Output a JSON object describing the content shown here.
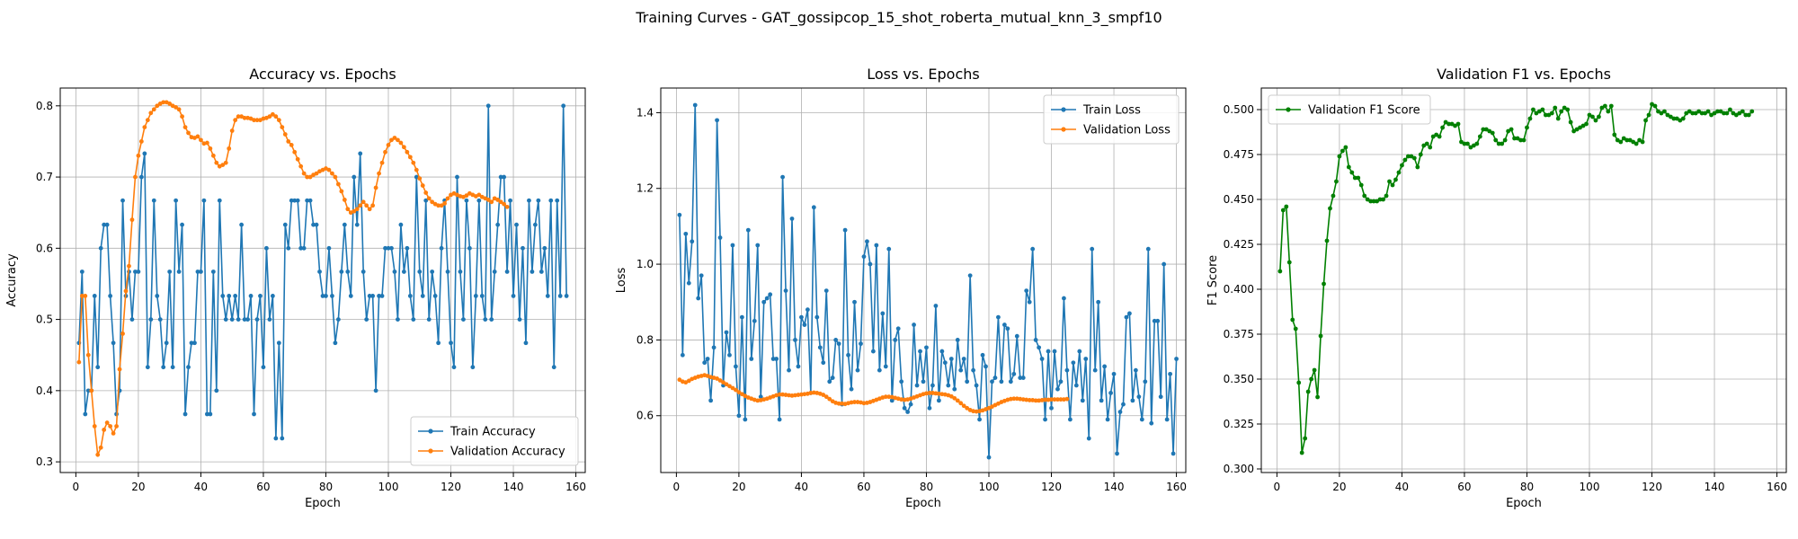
{
  "suptitle": "Training Curves - GAT_gossipcop_15_shot_roberta_mutual_knn_3_smpf10",
  "colors": {
    "train": "#1f77b4",
    "val": "#ff7f0e",
    "f1": "#008000",
    "grid": "#b0b0b0"
  },
  "chart_data": [
    {
      "type": "line",
      "title": "Accuracy vs. Epochs",
      "xlabel": "Epoch",
      "ylabel": "Accuracy",
      "xlim": [
        -5,
        163
      ],
      "ylim": [
        0.285,
        0.825
      ],
      "xticks": [
        0,
        20,
        40,
        60,
        80,
        100,
        120,
        140,
        160
      ],
      "yticks": [
        0.3,
        0.4,
        0.5,
        0.6,
        0.7,
        0.8
      ],
      "tick_decimals": 1,
      "legend_position": "lower-right",
      "series": [
        {
          "name": "Train Accuracy",
          "color_key": "train",
          "values": [
            0.467,
            0.567,
            0.367,
            0.4,
            0.4,
            0.533,
            0.433,
            0.6,
            0.633,
            0.633,
            0.533,
            0.467,
            0.367,
            0.4,
            0.667,
            0.533,
            0.567,
            0.5,
            0.567,
            0.567,
            0.7,
            0.733,
            0.433,
            0.5,
            0.667,
            0.533,
            0.5,
            0.433,
            0.467,
            0.567,
            0.433,
            0.667,
            0.567,
            0.633,
            0.367,
            0.433,
            0.467,
            0.467,
            0.567,
            0.567,
            0.667,
            0.367,
            0.367,
            0.567,
            0.4,
            0.667,
            0.533,
            0.5,
            0.533,
            0.5,
            0.533,
            0.5,
            0.633,
            0.5,
            0.5,
            0.533,
            0.367,
            0.5,
            0.533,
            0.433,
            0.6,
            0.5,
            0.533,
            0.333,
            0.467,
            0.333,
            0.633,
            0.6,
            0.667,
            0.667,
            0.667,
            0.6,
            0.6,
            0.667,
            0.667,
            0.633,
            0.633,
            0.567,
            0.533,
            0.533,
            0.6,
            0.533,
            0.467,
            0.5,
            0.567,
            0.633,
            0.567,
            0.533,
            0.7,
            0.633,
            0.733,
            0.567,
            0.5,
            0.533,
            0.533,
            0.4,
            0.533,
            0.533,
            0.6,
            0.6,
            0.6,
            0.567,
            0.5,
            0.633,
            0.567,
            0.6,
            0.533,
            0.5,
            0.7,
            0.567,
            0.533,
            0.667,
            0.5,
            0.567,
            0.533,
            0.467,
            0.6,
            0.667,
            0.567,
            0.467,
            0.433,
            0.7,
            0.567,
            0.5,
            0.667,
            0.6,
            0.433,
            0.533,
            0.667,
            0.533,
            0.5,
            0.8,
            0.5,
            0.567,
            0.633,
            0.7,
            0.7,
            0.567,
            0.667,
            0.533,
            0.633,
            0.5,
            0.6,
            0.467,
            0.667,
            0.567,
            0.633,
            0.667,
            0.567,
            0.6,
            0.533,
            0.667,
            0.433,
            0.667,
            0.533,
            0.8,
            0.533
          ]
        },
        {
          "name": "Validation Accuracy",
          "color_key": "val",
          "values": [
            0.44,
            0.533,
            0.533,
            0.45,
            0.4,
            0.35,
            0.31,
            0.32,
            0.345,
            0.355,
            0.35,
            0.34,
            0.35,
            0.43,
            0.48,
            0.54,
            0.575,
            0.64,
            0.7,
            0.73,
            0.75,
            0.77,
            0.78,
            0.79,
            0.795,
            0.8,
            0.803,
            0.805,
            0.805,
            0.803,
            0.8,
            0.798,
            0.795,
            0.785,
            0.77,
            0.762,
            0.756,
            0.755,
            0.757,
            0.752,
            0.747,
            0.748,
            0.74,
            0.73,
            0.72,
            0.715,
            0.717,
            0.72,
            0.74,
            0.765,
            0.78,
            0.785,
            0.785,
            0.783,
            0.783,
            0.782,
            0.78,
            0.78,
            0.78,
            0.782,
            0.783,
            0.785,
            0.788,
            0.785,
            0.78,
            0.77,
            0.76,
            0.75,
            0.745,
            0.735,
            0.725,
            0.715,
            0.705,
            0.7,
            0.7,
            0.703,
            0.705,
            0.708,
            0.71,
            0.712,
            0.71,
            0.705,
            0.7,
            0.69,
            0.68,
            0.668,
            0.655,
            0.65,
            0.652,
            0.655,
            0.66,
            0.665,
            0.66,
            0.655,
            0.66,
            0.685,
            0.705,
            0.72,
            0.735,
            0.745,
            0.752,
            0.755,
            0.752,
            0.748,
            0.742,
            0.735,
            0.728,
            0.72,
            0.71,
            0.698,
            0.688,
            0.678,
            0.67,
            0.665,
            0.662,
            0.66,
            0.66,
            0.663,
            0.67,
            0.675,
            0.677,
            0.675,
            0.673,
            0.672,
            0.674,
            0.677,
            0.675,
            0.673,
            0.675,
            0.672,
            0.67,
            0.668,
            0.665,
            0.67,
            0.668,
            0.665,
            0.662,
            0.658
          ]
        }
      ]
    },
    {
      "type": "line",
      "title": "Loss vs. Epochs",
      "xlabel": "Epoch",
      "ylabel": "Loss",
      "xlim": [
        -5,
        163
      ],
      "ylim": [
        0.45,
        1.465
      ],
      "xticks": [
        0,
        20,
        40,
        60,
        80,
        100,
        120,
        140,
        160
      ],
      "yticks": [
        0.6,
        0.8,
        1.0,
        1.2,
        1.4
      ],
      "tick_decimals": 1,
      "legend_position": "upper-right",
      "series": [
        {
          "name": "Train Loss",
          "color_key": "train",
          "values": [
            1.13,
            0.76,
            1.08,
            0.95,
            1.06,
            1.42,
            0.91,
            0.97,
            0.74,
            0.75,
            0.64,
            0.78,
            1.38,
            1.07,
            0.68,
            0.82,
            0.76,
            1.05,
            0.73,
            0.6,
            0.86,
            0.59,
            1.09,
            0.75,
            0.85,
            1.05,
            0.65,
            0.9,
            0.91,
            0.92,
            0.75,
            0.75,
            0.59,
            1.23,
            0.93,
            0.72,
            1.12,
            0.8,
            0.73,
            0.86,
            0.84,
            0.88,
            0.66,
            1.15,
            0.86,
            0.78,
            0.74,
            0.93,
            0.69,
            0.7,
            0.8,
            0.79,
            0.63,
            1.09,
            0.76,
            0.67,
            0.9,
            0.72,
            0.79,
            1.02,
            1.06,
            1.0,
            0.77,
            1.05,
            0.72,
            0.87,
            0.73,
            1.04,
            0.64,
            0.8,
            0.83,
            0.69,
            0.62,
            0.61,
            0.63,
            0.84,
            0.68,
            0.77,
            0.69,
            0.78,
            0.62,
            0.68,
            0.89,
            0.64,
            0.77,
            0.74,
            0.68,
            0.75,
            0.67,
            0.8,
            0.72,
            0.75,
            0.69,
            0.97,
            0.72,
            0.68,
            0.59,
            0.76,
            0.73,
            0.49,
            0.69,
            0.7,
            0.86,
            0.69,
            0.84,
            0.83,
            0.69,
            0.71,
            0.81,
            0.7,
            0.7,
            0.93,
            0.9,
            1.04,
            0.8,
            0.78,
            0.75,
            0.59,
            0.77,
            0.62,
            0.77,
            0.67,
            0.69,
            0.91,
            0.72,
            0.59,
            0.74,
            0.68,
            0.77,
            0.64,
            0.75,
            0.54,
            1.04,
            0.72,
            0.9,
            0.64,
            0.73,
            0.59,
            0.66,
            0.71,
            0.5,
            0.61,
            0.63,
            0.86,
            0.87,
            0.64,
            0.72,
            0.65,
            0.59,
            0.69,
            1.04,
            0.58,
            0.85,
            0.85,
            0.65,
            1.0,
            0.59,
            0.71,
            0.5,
            0.75
          ]
        },
        {
          "name": "Validation Loss",
          "color_key": "val",
          "values": [
            0.695,
            0.69,
            0.688,
            0.692,
            0.697,
            0.7,
            0.703,
            0.705,
            0.707,
            0.705,
            0.702,
            0.7,
            0.698,
            0.693,
            0.688,
            0.683,
            0.678,
            0.673,
            0.668,
            0.662,
            0.657,
            0.652,
            0.648,
            0.645,
            0.642,
            0.64,
            0.641,
            0.643,
            0.645,
            0.648,
            0.651,
            0.654,
            0.656,
            0.656,
            0.655,
            0.654,
            0.653,
            0.654,
            0.655,
            0.656,
            0.657,
            0.658,
            0.66,
            0.661,
            0.66,
            0.658,
            0.655,
            0.65,
            0.644,
            0.638,
            0.634,
            0.632,
            0.632,
            0.631,
            0.633,
            0.635,
            0.636,
            0.636,
            0.635,
            0.633,
            0.634,
            0.636,
            0.639,
            0.642,
            0.645,
            0.648,
            0.65,
            0.65,
            0.649,
            0.647,
            0.645,
            0.643,
            0.642,
            0.643,
            0.645,
            0.648,
            0.651,
            0.654,
            0.657,
            0.659,
            0.66,
            0.66,
            0.659,
            0.658,
            0.657,
            0.656,
            0.654,
            0.651,
            0.646,
            0.64,
            0.633,
            0.626,
            0.62,
            0.615,
            0.612,
            0.611,
            0.612,
            0.614,
            0.617,
            0.62,
            0.624,
            0.628,
            0.632,
            0.636,
            0.639,
            0.642,
            0.644,
            0.645,
            0.645,
            0.644,
            0.643,
            0.642,
            0.641,
            0.641,
            0.64,
            0.64,
            0.641,
            0.642,
            0.642,
            0.643,
            0.643,
            0.643,
            0.643,
            0.643,
            0.644
          ]
        }
      ]
    },
    {
      "type": "line",
      "title": "Validation F1 vs. Epochs",
      "xlabel": "Epoch",
      "ylabel": "F1 Score",
      "xlim": [
        -5,
        163
      ],
      "ylim": [
        0.298,
        0.512
      ],
      "xticks": [
        0,
        20,
        40,
        60,
        80,
        100,
        120,
        140,
        160
      ],
      "yticks": [
        0.3,
        0.325,
        0.35,
        0.375,
        0.4,
        0.425,
        0.45,
        0.475,
        0.5
      ],
      "tick_decimals": 3,
      "legend_position": "upper-left",
      "series": [
        {
          "name": "Validation F1 Score",
          "color_key": "f1",
          "values": [
            0.41,
            0.444,
            0.446,
            0.415,
            0.383,
            0.378,
            0.348,
            0.309,
            0.317,
            0.343,
            0.35,
            0.355,
            0.34,
            0.374,
            0.403,
            0.427,
            0.445,
            0.452,
            0.46,
            0.474,
            0.477,
            0.479,
            0.468,
            0.465,
            0.462,
            0.462,
            0.458,
            0.452,
            0.45,
            0.449,
            0.449,
            0.449,
            0.45,
            0.45,
            0.452,
            0.46,
            0.458,
            0.461,
            0.465,
            0.469,
            0.472,
            0.474,
            0.474,
            0.473,
            0.468,
            0.475,
            0.48,
            0.481,
            0.479,
            0.485,
            0.486,
            0.485,
            0.49,
            0.493,
            0.492,
            0.492,
            0.491,
            0.492,
            0.482,
            0.481,
            0.481,
            0.479,
            0.48,
            0.481,
            0.485,
            0.489,
            0.489,
            0.488,
            0.487,
            0.483,
            0.481,
            0.481,
            0.483,
            0.488,
            0.489,
            0.484,
            0.484,
            0.483,
            0.483,
            0.49,
            0.495,
            0.5,
            0.498,
            0.499,
            0.5,
            0.497,
            0.497,
            0.498,
            0.501,
            0.495,
            0.499,
            0.501,
            0.5,
            0.493,
            0.488,
            0.489,
            0.49,
            0.491,
            0.492,
            0.497,
            0.496,
            0.494,
            0.496,
            0.501,
            0.502,
            0.499,
            0.502,
            0.486,
            0.483,
            0.482,
            0.484,
            0.483,
            0.483,
            0.482,
            0.481,
            0.483,
            0.482,
            0.494,
            0.497,
            0.503,
            0.502,
            0.499,
            0.498,
            0.499,
            0.497,
            0.496,
            0.495,
            0.495,
            0.494,
            0.495,
            0.498,
            0.499,
            0.498,
            0.498,
            0.499,
            0.498,
            0.498,
            0.499,
            0.497,
            0.498,
            0.499,
            0.499,
            0.498,
            0.498,
            0.5,
            0.498,
            0.497,
            0.498,
            0.499,
            0.497,
            0.497,
            0.499
          ]
        }
      ]
    }
  ]
}
